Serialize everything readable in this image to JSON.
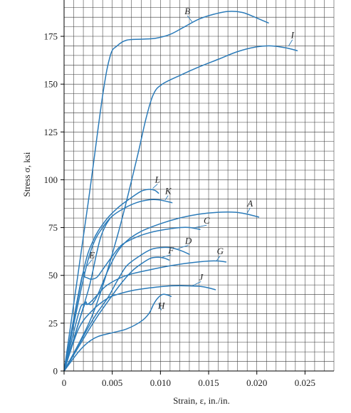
{
  "chart_data": {
    "type": "line",
    "title": "",
    "xlabel": "Strain, ε, in./in.",
    "ylabel": "Stress σ, ksi",
    "xlim": [
      0,
      0.028
    ],
    "ylim": [
      0,
      194
    ],
    "x_ticks": [
      0,
      0.005,
      0.01,
      0.015,
      0.02,
      0.025
    ],
    "x_tick_labels": [
      "0",
      "0.005",
      "0.010",
      "0.015",
      "0.020",
      "0.025"
    ],
    "y_ticks": [
      0,
      25,
      50,
      75,
      100,
      125,
      150,
      175
    ],
    "y_tick_labels": [
      "0",
      "25",
      "50",
      "75",
      "100",
      "125",
      "150",
      "175"
    ],
    "grid": true,
    "grid_step_x": 0.001,
    "grid_step_y": 5,
    "curve_color": "#2b7bb9",
    "series": [
      {
        "name": "B",
        "points": [
          [
            0,
            0
          ],
          [
            0.0025,
            88
          ],
          [
            0.004,
            144
          ],
          [
            0.0048,
            165
          ],
          [
            0.0055,
            170
          ],
          [
            0.0065,
            173
          ],
          [
            0.008,
            173.5
          ],
          [
            0.0095,
            174
          ],
          [
            0.011,
            176
          ],
          [
            0.0125,
            180
          ],
          [
            0.014,
            184
          ],
          [
            0.0155,
            186.5
          ],
          [
            0.017,
            188
          ],
          [
            0.0185,
            187.5
          ],
          [
            0.0198,
            185
          ],
          [
            0.0212,
            182
          ]
        ]
      },
      {
        "name": "I",
        "points": [
          [
            0,
            0
          ],
          [
            0.003,
            30
          ],
          [
            0.0055,
            70
          ],
          [
            0.0075,
            110
          ],
          [
            0.0085,
            132
          ],
          [
            0.0093,
            145
          ],
          [
            0.0102,
            150
          ],
          [
            0.012,
            154.5
          ],
          [
            0.014,
            159
          ],
          [
            0.016,
            163
          ],
          [
            0.018,
            167
          ],
          [
            0.02,
            169.5
          ],
          [
            0.0215,
            170
          ],
          [
            0.023,
            169
          ],
          [
            0.0242,
            167.5
          ]
        ]
      },
      {
        "name": "L",
        "points": [
          [
            0,
            0
          ],
          [
            0.002,
            52
          ],
          [
            0.003,
            68
          ],
          [
            0.0042,
            78
          ],
          [
            0.0055,
            85
          ],
          [
            0.0068,
            90
          ],
          [
            0.008,
            94
          ],
          [
            0.0088,
            95
          ],
          [
            0.0094,
            94.5
          ],
          [
            0.0098,
            93
          ]
        ]
      },
      {
        "name": "K",
        "points": [
          [
            0,
            0
          ],
          [
            0.002,
            48
          ],
          [
            0.003,
            66
          ],
          [
            0.004,
            75
          ],
          [
            0.005,
            81
          ],
          [
            0.0062,
            85
          ],
          [
            0.0075,
            88
          ],
          [
            0.0088,
            89.5
          ],
          [
            0.0098,
            89.5
          ],
          [
            0.0108,
            88.5
          ],
          [
            0.0112,
            88
          ]
        ]
      },
      {
        "name": "A",
        "points": [
          [
            0,
            0
          ],
          [
            0.002,
            33
          ],
          [
            0.0024,
            35
          ],
          [
            0.0029,
            35
          ],
          [
            0.0035,
            40
          ],
          [
            0.0045,
            52
          ],
          [
            0.0055,
            62
          ],
          [
            0.0065,
            68
          ],
          [
            0.008,
            73
          ],
          [
            0.01,
            77
          ],
          [
            0.012,
            80
          ],
          [
            0.014,
            82
          ],
          [
            0.016,
            83
          ],
          [
            0.0178,
            83
          ],
          [
            0.019,
            82
          ],
          [
            0.0202,
            80.5
          ]
        ]
      },
      {
        "name": "C",
        "points": [
          [
            0,
            0
          ],
          [
            0.0018,
            48
          ],
          [
            0.0022,
            49
          ],
          [
            0.0028,
            48
          ],
          [
            0.0034,
            49
          ],
          [
            0.004,
            53
          ],
          [
            0.005,
            60
          ],
          [
            0.006,
            66
          ],
          [
            0.0075,
            70
          ],
          [
            0.009,
            72.5
          ],
          [
            0.0105,
            74
          ],
          [
            0.012,
            75
          ],
          [
            0.0131,
            75
          ],
          [
            0.0141,
            74
          ]
        ]
      },
      {
        "name": "D",
        "points": [
          [
            0,
            0
          ],
          [
            0.003,
            27
          ],
          [
            0.0045,
            38
          ],
          [
            0.0055,
            47
          ],
          [
            0.0065,
            55
          ],
          [
            0.0078,
            60
          ],
          [
            0.009,
            63.5
          ],
          [
            0.01,
            64.5
          ],
          [
            0.011,
            64.5
          ],
          [
            0.0121,
            63
          ],
          [
            0.013,
            61
          ]
        ]
      },
      {
        "name": "E",
        "points": [
          [
            0,
            0
          ],
          [
            0.0015,
            25
          ],
          [
            0.0025,
            42
          ],
          [
            0.0028,
            48
          ],
          [
            0.0031,
            55
          ],
          [
            0.0034,
            62
          ],
          [
            0.0038,
            70
          ],
          [
            0.0043,
            76
          ],
          [
            0.0048,
            80
          ]
        ]
      },
      {
        "name": "F",
        "points": [
          [
            0,
            0
          ],
          [
            0.003,
            25
          ],
          [
            0.0045,
            36
          ],
          [
            0.0058,
            45
          ],
          [
            0.007,
            52
          ],
          [
            0.008,
            56
          ],
          [
            0.009,
            59
          ],
          [
            0.0098,
            59.5
          ],
          [
            0.0104,
            59
          ],
          [
            0.0109,
            58
          ]
        ]
      },
      {
        "name": "G",
        "points": [
          [
            0,
            0
          ],
          [
            0.0015,
            30
          ],
          [
            0.002,
            35
          ],
          [
            0.0025,
            35
          ],
          [
            0.0035,
            40
          ],
          [
            0.0045,
            45
          ],
          [
            0.0065,
            50
          ],
          [
            0.009,
            53
          ],
          [
            0.011,
            55
          ],
          [
            0.013,
            56.5
          ],
          [
            0.015,
            57.5
          ],
          [
            0.0161,
            57.5
          ],
          [
            0.0168,
            57
          ]
        ]
      },
      {
        "name": "J",
        "points": [
          [
            0,
            0
          ],
          [
            0.0015,
            22
          ],
          [
            0.003,
            32
          ],
          [
            0.0045,
            38
          ],
          [
            0.0055,
            40
          ],
          [
            0.007,
            42
          ],
          [
            0.009,
            43.5
          ],
          [
            0.011,
            44.5
          ],
          [
            0.013,
            44.5
          ],
          [
            0.0145,
            44
          ],
          [
            0.0157,
            42.5
          ]
        ]
      },
      {
        "name": "H",
        "points": [
          [
            0,
            0
          ],
          [
            0.0015,
            10
          ],
          [
            0.0025,
            15
          ],
          [
            0.0035,
            18
          ],
          [
            0.005,
            20
          ],
          [
            0.0065,
            22
          ],
          [
            0.008,
            26
          ],
          [
            0.0088,
            30
          ],
          [
            0.0093,
            35
          ],
          [
            0.0097,
            38
          ],
          [
            0.0102,
            40
          ],
          [
            0.0107,
            39.8
          ],
          [
            0.0111,
            39
          ]
        ]
      }
    ],
    "labels": [
      {
        "text": "B",
        "x": 0.0128,
        "y": 186.5,
        "ax": 0.0133,
        "ay": 182.5
      },
      {
        "text": "I",
        "x": 0.0237,
        "y": 174,
        "ax": 0.0233,
        "ay": 170
      },
      {
        "text": "L",
        "x": 0.0097,
        "y": 98.5,
        "ax": 0.0092,
        "ay": 95.5
      },
      {
        "text": "K",
        "x": 0.0108,
        "y": 92.5,
        "ax": 0.0105,
        "ay": 89.5
      },
      {
        "text": "A",
        "x": 0.0193,
        "y": 86,
        "ax": 0.019,
        "ay": 82.5
      },
      {
        "text": "C",
        "x": 0.0148,
        "y": 77,
        "ax": 0.0136,
        "ay": 75
      },
      {
        "text": "D",
        "x": 0.0129,
        "y": 66.5,
        "ax": 0.0118,
        "ay": 64
      },
      {
        "text": "E",
        "x": 0.0029,
        "y": 59,
        "ax": 0.0024,
        "ay": 55
      },
      {
        "text": "F",
        "x": 0.0111,
        "y": 61.5,
        "ax": 0.0102,
        "ay": 59.5
      },
      {
        "text": "G",
        "x": 0.0162,
        "y": 61,
        "ax": 0.0158,
        "ay": 57.5
      },
      {
        "text": "J",
        "x": 0.0142,
        "y": 47.5,
        "ax": 0.0133,
        "ay": 44.5
      },
      {
        "text": "H",
        "x": 0.0101,
        "y": 32.5,
        "ax": 0.0098,
        "ay": 35.5
      }
    ]
  }
}
